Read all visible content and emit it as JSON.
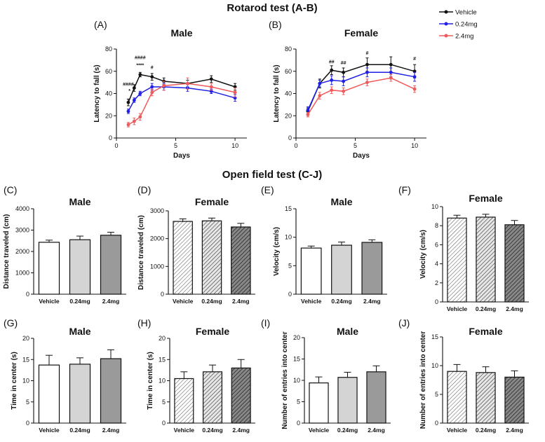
{
  "sections": {
    "rotarod_title": "Rotarod test (A-B)",
    "openfield_title": "Open field test (C-J)"
  },
  "legend": [
    {
      "label": "Vehicle",
      "color": "#111111"
    },
    {
      "label": "0.24mg",
      "color": "#1f1fe6"
    },
    {
      "label": "2.4mg",
      "color": "#f05a5a"
    }
  ],
  "bar_colors": [
    "#ffffff",
    "#d4d4d4",
    "#9a9a9a"
  ],
  "chart_data": [
    {
      "id": "A",
      "panel_label": "(A)",
      "type": "line",
      "title": "Male",
      "xlabel": "Days",
      "ylabel": "Latency to fall (s)",
      "xlim": [
        0,
        11
      ],
      "xticks": [
        0,
        5,
        10
      ],
      "ylim": [
        0,
        80
      ],
      "yticks": [
        0,
        20,
        40,
        60,
        80
      ],
      "series": [
        {
          "name": "Vehicle",
          "x": [
            1,
            1.5,
            2,
            3,
            4,
            6,
            8,
            10
          ],
          "values": [
            32,
            45,
            57,
            55,
            51,
            49,
            53,
            46
          ],
          "errors": [
            3,
            3,
            2,
            3,
            3,
            3,
            3,
            3
          ]
        },
        {
          "name": "0.24mg",
          "x": [
            1,
            1.5,
            2,
            3,
            4,
            6,
            8,
            10
          ],
          "values": [
            24,
            34,
            40,
            46,
            46,
            45,
            42,
            36
          ],
          "errors": [
            2,
            2,
            2,
            3,
            3,
            3,
            2,
            3
          ]
        },
        {
          "name": "2.4mg",
          "x": [
            1,
            1.5,
            2,
            3,
            4,
            6,
            8,
            10
          ],
          "values": [
            12,
            15,
            19,
            41,
            47,
            49,
            46,
            41
          ],
          "errors": [
            2,
            3,
            3,
            3,
            4,
            5,
            3,
            4
          ]
        }
      ],
      "annotations": [
        {
          "text": "####",
          "x": 1,
          "y": 47
        },
        {
          "text": "*",
          "x": 1.1,
          "y": 41
        },
        {
          "text": "####",
          "x": 2,
          "y": 71
        },
        {
          "text": "****",
          "x": 2,
          "y": 64
        },
        {
          "text": "#",
          "x": 3,
          "y": 62
        }
      ]
    },
    {
      "id": "B",
      "panel_label": "(B)",
      "type": "line",
      "title": "Female",
      "xlabel": "Days",
      "ylabel": "Latency to fall (s)",
      "xlim": [
        0,
        11
      ],
      "xticks": [
        0,
        5,
        10
      ],
      "ylim": [
        0,
        80
      ],
      "yticks": [
        0,
        20,
        40,
        60,
        80
      ],
      "series": [
        {
          "name": "Vehicle",
          "x": [
            1,
            2,
            3,
            4,
            6,
            8,
            10
          ],
          "values": [
            24,
            49,
            61,
            59,
            66,
            66,
            60
          ],
          "errors": [
            3,
            4,
            4,
            4,
            6,
            7,
            6
          ]
        },
        {
          "name": "0.24mg",
          "x": [
            1,
            2,
            3,
            4,
            6,
            8,
            10
          ],
          "values": [
            25,
            49,
            52,
            51,
            59,
            59,
            55
          ],
          "errors": [
            3,
            3,
            4,
            4,
            4,
            4,
            4
          ]
        },
        {
          "name": "2.4mg",
          "x": [
            1,
            2,
            3,
            4,
            6,
            8,
            10
          ],
          "values": [
            21,
            38,
            43,
            42,
            50,
            54,
            44
          ],
          "errors": [
            2,
            3,
            3,
            3,
            3,
            3,
            3
          ]
        }
      ],
      "annotations": [
        {
          "text": "##",
          "x": 3,
          "y": 67
        },
        {
          "text": "##",
          "x": 4,
          "y": 66
        },
        {
          "text": "#",
          "x": 6,
          "y": 75
        },
        {
          "text": "#",
          "x": 10,
          "y": 70
        }
      ]
    },
    {
      "id": "C",
      "panel_label": "(C)",
      "type": "bar",
      "title": "Male",
      "ylabel": "Distance traveled (cm)",
      "categories": [
        "Vehicle",
        "0.24mg",
        "2.4mg"
      ],
      "values": [
        2430,
        2550,
        2760
      ],
      "errors": [
        100,
        170,
        140
      ],
      "ylim": [
        0,
        4000
      ],
      "yticks": [
        0,
        1000,
        2000,
        3000,
        4000
      ]
    },
    {
      "id": "D",
      "panel_label": "(D)",
      "type": "bar",
      "title": "Female",
      "ylabel": "Distance traveled (cm)",
      "categories": [
        "Vehicle",
        "0.24mg",
        "2.4mg"
      ],
      "values": [
        2620,
        2640,
        2420
      ],
      "errors": [
        90,
        100,
        130
      ],
      "ylim": [
        0,
        3000
      ],
      "yticks": [
        0,
        1000,
        2000,
        3000
      ]
    },
    {
      "id": "E",
      "panel_label": "(E)",
      "type": "bar",
      "title": "Male",
      "ylabel": "Velocity (cm/s)",
      "categories": [
        "Vehicle",
        "0.24mg",
        "2.4mg"
      ],
      "values": [
        8.1,
        8.6,
        9.1
      ],
      "errors": [
        0.35,
        0.55,
        0.45
      ],
      "ylim": [
        0,
        15
      ],
      "yticks": [
        0,
        5,
        10,
        15
      ]
    },
    {
      "id": "F",
      "panel_label": "(F)",
      "type": "bar",
      "title": "Female",
      "ylabel": "Velocity (cm/s)",
      "categories": [
        "Vehicle",
        "0.24mg",
        "2.4mg"
      ],
      "values": [
        8.8,
        8.9,
        8.1
      ],
      "errors": [
        0.3,
        0.3,
        0.45
      ],
      "ylim": [
        0,
        10
      ],
      "yticks": [
        0,
        2,
        4,
        6,
        8,
        10
      ]
    },
    {
      "id": "G",
      "panel_label": "(G)",
      "type": "bar",
      "title": "Male",
      "ylabel": "Time in center (s)",
      "categories": [
        "Vehicle",
        "0.24mg",
        "2.4mg"
      ],
      "values": [
        13.7,
        13.9,
        15.2
      ],
      "errors": [
        2.3,
        1.5,
        2.1
      ],
      "ylim": [
        0,
        20
      ],
      "yticks": [
        0,
        5,
        10,
        15,
        20
      ]
    },
    {
      "id": "H",
      "panel_label": "(H)",
      "type": "bar",
      "title": "Female",
      "ylabel": "Time in center (s)",
      "categories": [
        "Vehicle",
        "0.24mg",
        "2.4mg"
      ],
      "values": [
        10.5,
        12.1,
        13.0
      ],
      "errors": [
        1.6,
        1.6,
        2.0
      ],
      "ylim": [
        0,
        20
      ],
      "yticks": [
        0,
        5,
        10,
        15,
        20
      ]
    },
    {
      "id": "I",
      "panel_label": "(I)",
      "type": "bar",
      "title": "Male",
      "ylabel": "Number of entries into center",
      "categories": [
        "Vehicle",
        "0.24mg",
        "2.4mg"
      ],
      "values": [
        9.4,
        10.7,
        12.0
      ],
      "errors": [
        1.4,
        1.2,
        1.4
      ],
      "ylim": [
        0,
        20
      ],
      "yticks": [
        0,
        5,
        10,
        15,
        20
      ]
    },
    {
      "id": "J",
      "panel_label": "(J)",
      "type": "bar",
      "title": "Female",
      "ylabel": "Number of entries into center",
      "categories": [
        "Vehicle",
        "0.24mg",
        "2.4mg"
      ],
      "values": [
        9.0,
        8.8,
        8.0
      ],
      "errors": [
        1.2,
        1.0,
        1.1
      ],
      "ylim": [
        0,
        15
      ],
      "yticks": [
        0,
        5,
        10,
        15
      ]
    }
  ]
}
